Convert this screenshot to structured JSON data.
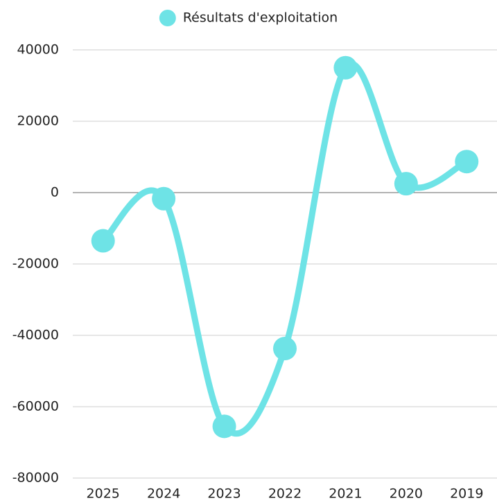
{
  "chart_data": {
    "type": "line",
    "categories": [
      "2025",
      "2024",
      "2023",
      "2022",
      "2021",
      "2020",
      "2019"
    ],
    "series": [
      {
        "name": "Résultats d'exploitation",
        "color": "#6ee3e6",
        "values": [
          -13500,
          -1700,
          -65500,
          -43700,
          35000,
          2500,
          8700
        ]
      }
    ],
    "ylim": [
      -80000,
      40000
    ],
    "yticks": [
      40000,
      20000,
      0,
      -20000,
      -40000,
      -60000,
      -80000
    ],
    "grid": true,
    "legend": "top"
  }
}
